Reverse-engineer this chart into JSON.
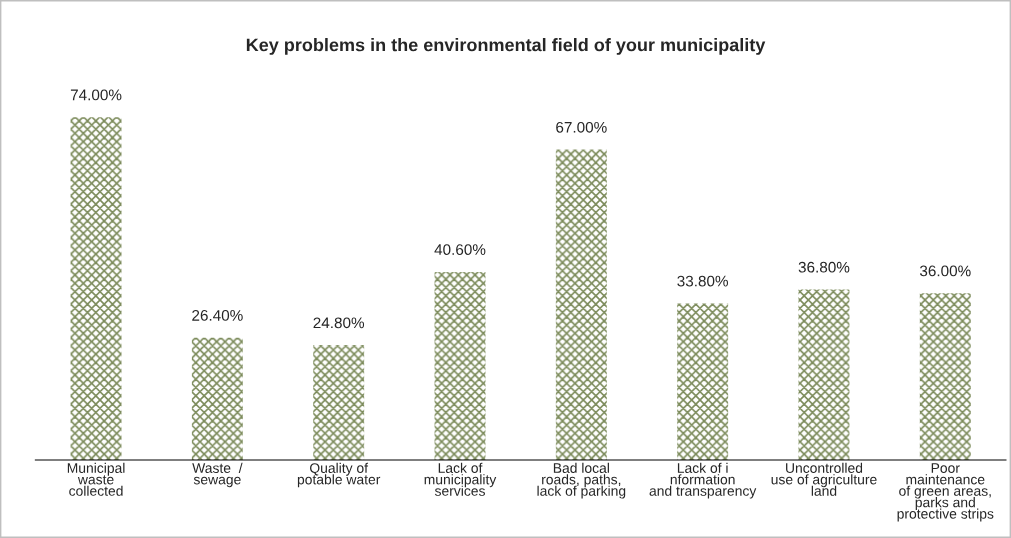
{
  "chart_data": {
    "type": "bar",
    "title": "Key problems in the environmental field of your municipality",
    "categories": [
      "Municipal\nwaste\ncollected",
      "Waste  /\nsewage",
      "Quality of\npotable water",
      "Lack of\nmunicipality\nservices",
      "Bad local\nroads, paths,\nlack of parking",
      "Lack of i\nnformation\nand transparency",
      "Uncontrolled\nuse of agriculture\nland",
      "Poor\nmaintenance\nof green areas,\nparks and\nprotective strips"
    ],
    "values": [
      74,
      26.4,
      24.8,
      40.6,
      67,
      33.8,
      36.8,
      36
    ],
    "value_labels": [
      "74.00%",
      "26.40%",
      "24.80%",
      "40.60%",
      "67.00%",
      "33.80%",
      "36.80%",
      "36.00%"
    ],
    "color": "#7d8c5c",
    "grid": false,
    "legend": false
  }
}
